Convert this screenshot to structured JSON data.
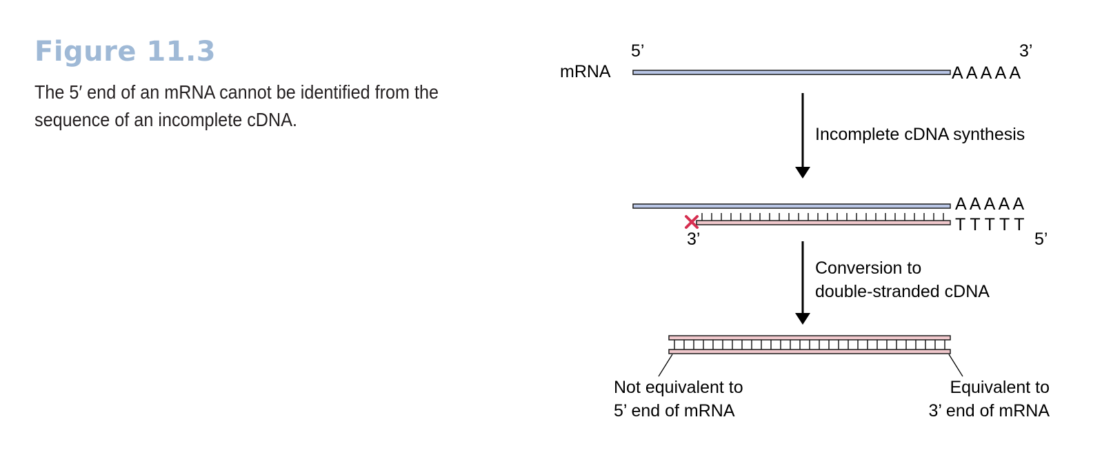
{
  "figure": {
    "title": "Figure 11.3",
    "caption": "The 5′ end of an mRNA cannot be identified from the sequence of an incomplete cDNA."
  },
  "diagram": {
    "mrna_label": "mRNA",
    "mrna_five_prime": "5’",
    "mrna_three_prime": "3’",
    "poly_a": "A A A A A",
    "step1_label": "Incomplete cDNA synthesis",
    "hybrid_poly_a": "A A A A A",
    "oligo_dt": "T T T T T",
    "cdna_three_prime": "3’",
    "cdna_five_prime": "5’",
    "step2_label_line1": "Conversion to",
    "step2_label_line2": "double-stranded cDNA",
    "left_note_line1": "Not equivalent to",
    "left_note_line2": "5’ end of mRNA",
    "right_note_line1": "Equivalent to",
    "right_note_line2": "3’ end of mRNA",
    "colors": {
      "title": "#9fb9d6",
      "mrna_strand": "#b9c6e6",
      "cdna_strand": "#f0c8cc",
      "outline": "#1a1a1a",
      "stop_mark": "#d62f50",
      "arrow": "#000000"
    }
  }
}
